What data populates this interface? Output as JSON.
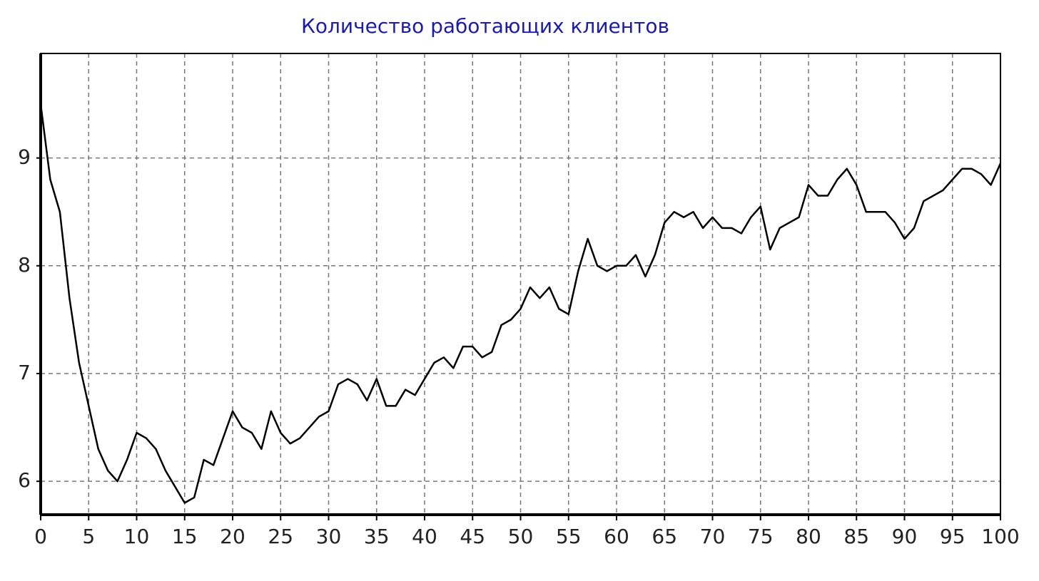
{
  "chart_data": {
    "type": "line",
    "title": "Количество работающих клиентов",
    "x": [
      0,
      1,
      2,
      3,
      4,
      5,
      6,
      7,
      8,
      9,
      10,
      11,
      12,
      13,
      14,
      15,
      16,
      17,
      18,
      19,
      20,
      21,
      22,
      23,
      24,
      25,
      26,
      27,
      28,
      29,
      30,
      31,
      32,
      33,
      34,
      35,
      36,
      37,
      38,
      39,
      40,
      41,
      42,
      43,
      44,
      45,
      46,
      47,
      48,
      49,
      50,
      51,
      52,
      53,
      54,
      55,
      56,
      57,
      58,
      59,
      60,
      61,
      62,
      63,
      64,
      65,
      66,
      67,
      68,
      69,
      70,
      71,
      72,
      73,
      74,
      75,
      76,
      77,
      78,
      79,
      80,
      81,
      82,
      83,
      84,
      85,
      86,
      87,
      88,
      89,
      90,
      91,
      92,
      93,
      94,
      95,
      96,
      97,
      98,
      99,
      100
    ],
    "series": [
      {
        "color": "#000000",
        "values": [
          9.5,
          8.8,
          8.5,
          7.7,
          7.1,
          6.7,
          6.3,
          6.1,
          6.0,
          6.2,
          6.45,
          6.4,
          6.3,
          6.1,
          5.95,
          5.8,
          5.85,
          6.2,
          6.15,
          6.4,
          6.65,
          6.5,
          6.45,
          6.3,
          6.65,
          6.45,
          6.35,
          6.4,
          6.5,
          6.6,
          6.65,
          6.9,
          6.95,
          6.9,
          6.75,
          6.95,
          6.7,
          6.7,
          6.85,
          6.8,
          6.95,
          7.1,
          7.15,
          7.05,
          7.25,
          7.25,
          7.15,
          7.2,
          7.45,
          7.5,
          7.6,
          7.8,
          7.7,
          7.8,
          7.6,
          7.55,
          7.95,
          8.25,
          8.0,
          7.95,
          8.0,
          8.0,
          8.1,
          7.9,
          8.1,
          8.4,
          8.5,
          8.45,
          8.5,
          8.35,
          8.45,
          8.35,
          8.35,
          8.3,
          8.45,
          8.55,
          8.15,
          8.35,
          8.4,
          8.45,
          8.75,
          8.65,
          8.65,
          8.8,
          8.9,
          8.75,
          8.5,
          8.5,
          8.5,
          8.4,
          8.25,
          8.35,
          8.6,
          8.65,
          8.7,
          8.8,
          8.9,
          8.9,
          8.85,
          8.75,
          8.95
        ]
      }
    ],
    "xlim": [
      0,
      100
    ],
    "xticks": [
      0,
      5,
      10,
      15,
      20,
      25,
      30,
      35,
      40,
      45,
      50,
      55,
      60,
      65,
      70,
      75,
      80,
      85,
      90,
      95,
      100
    ],
    "ylim": [
      5.69,
      9.97
    ],
    "yticks": [
      6,
      7,
      8,
      9
    ],
    "grid": true
  }
}
